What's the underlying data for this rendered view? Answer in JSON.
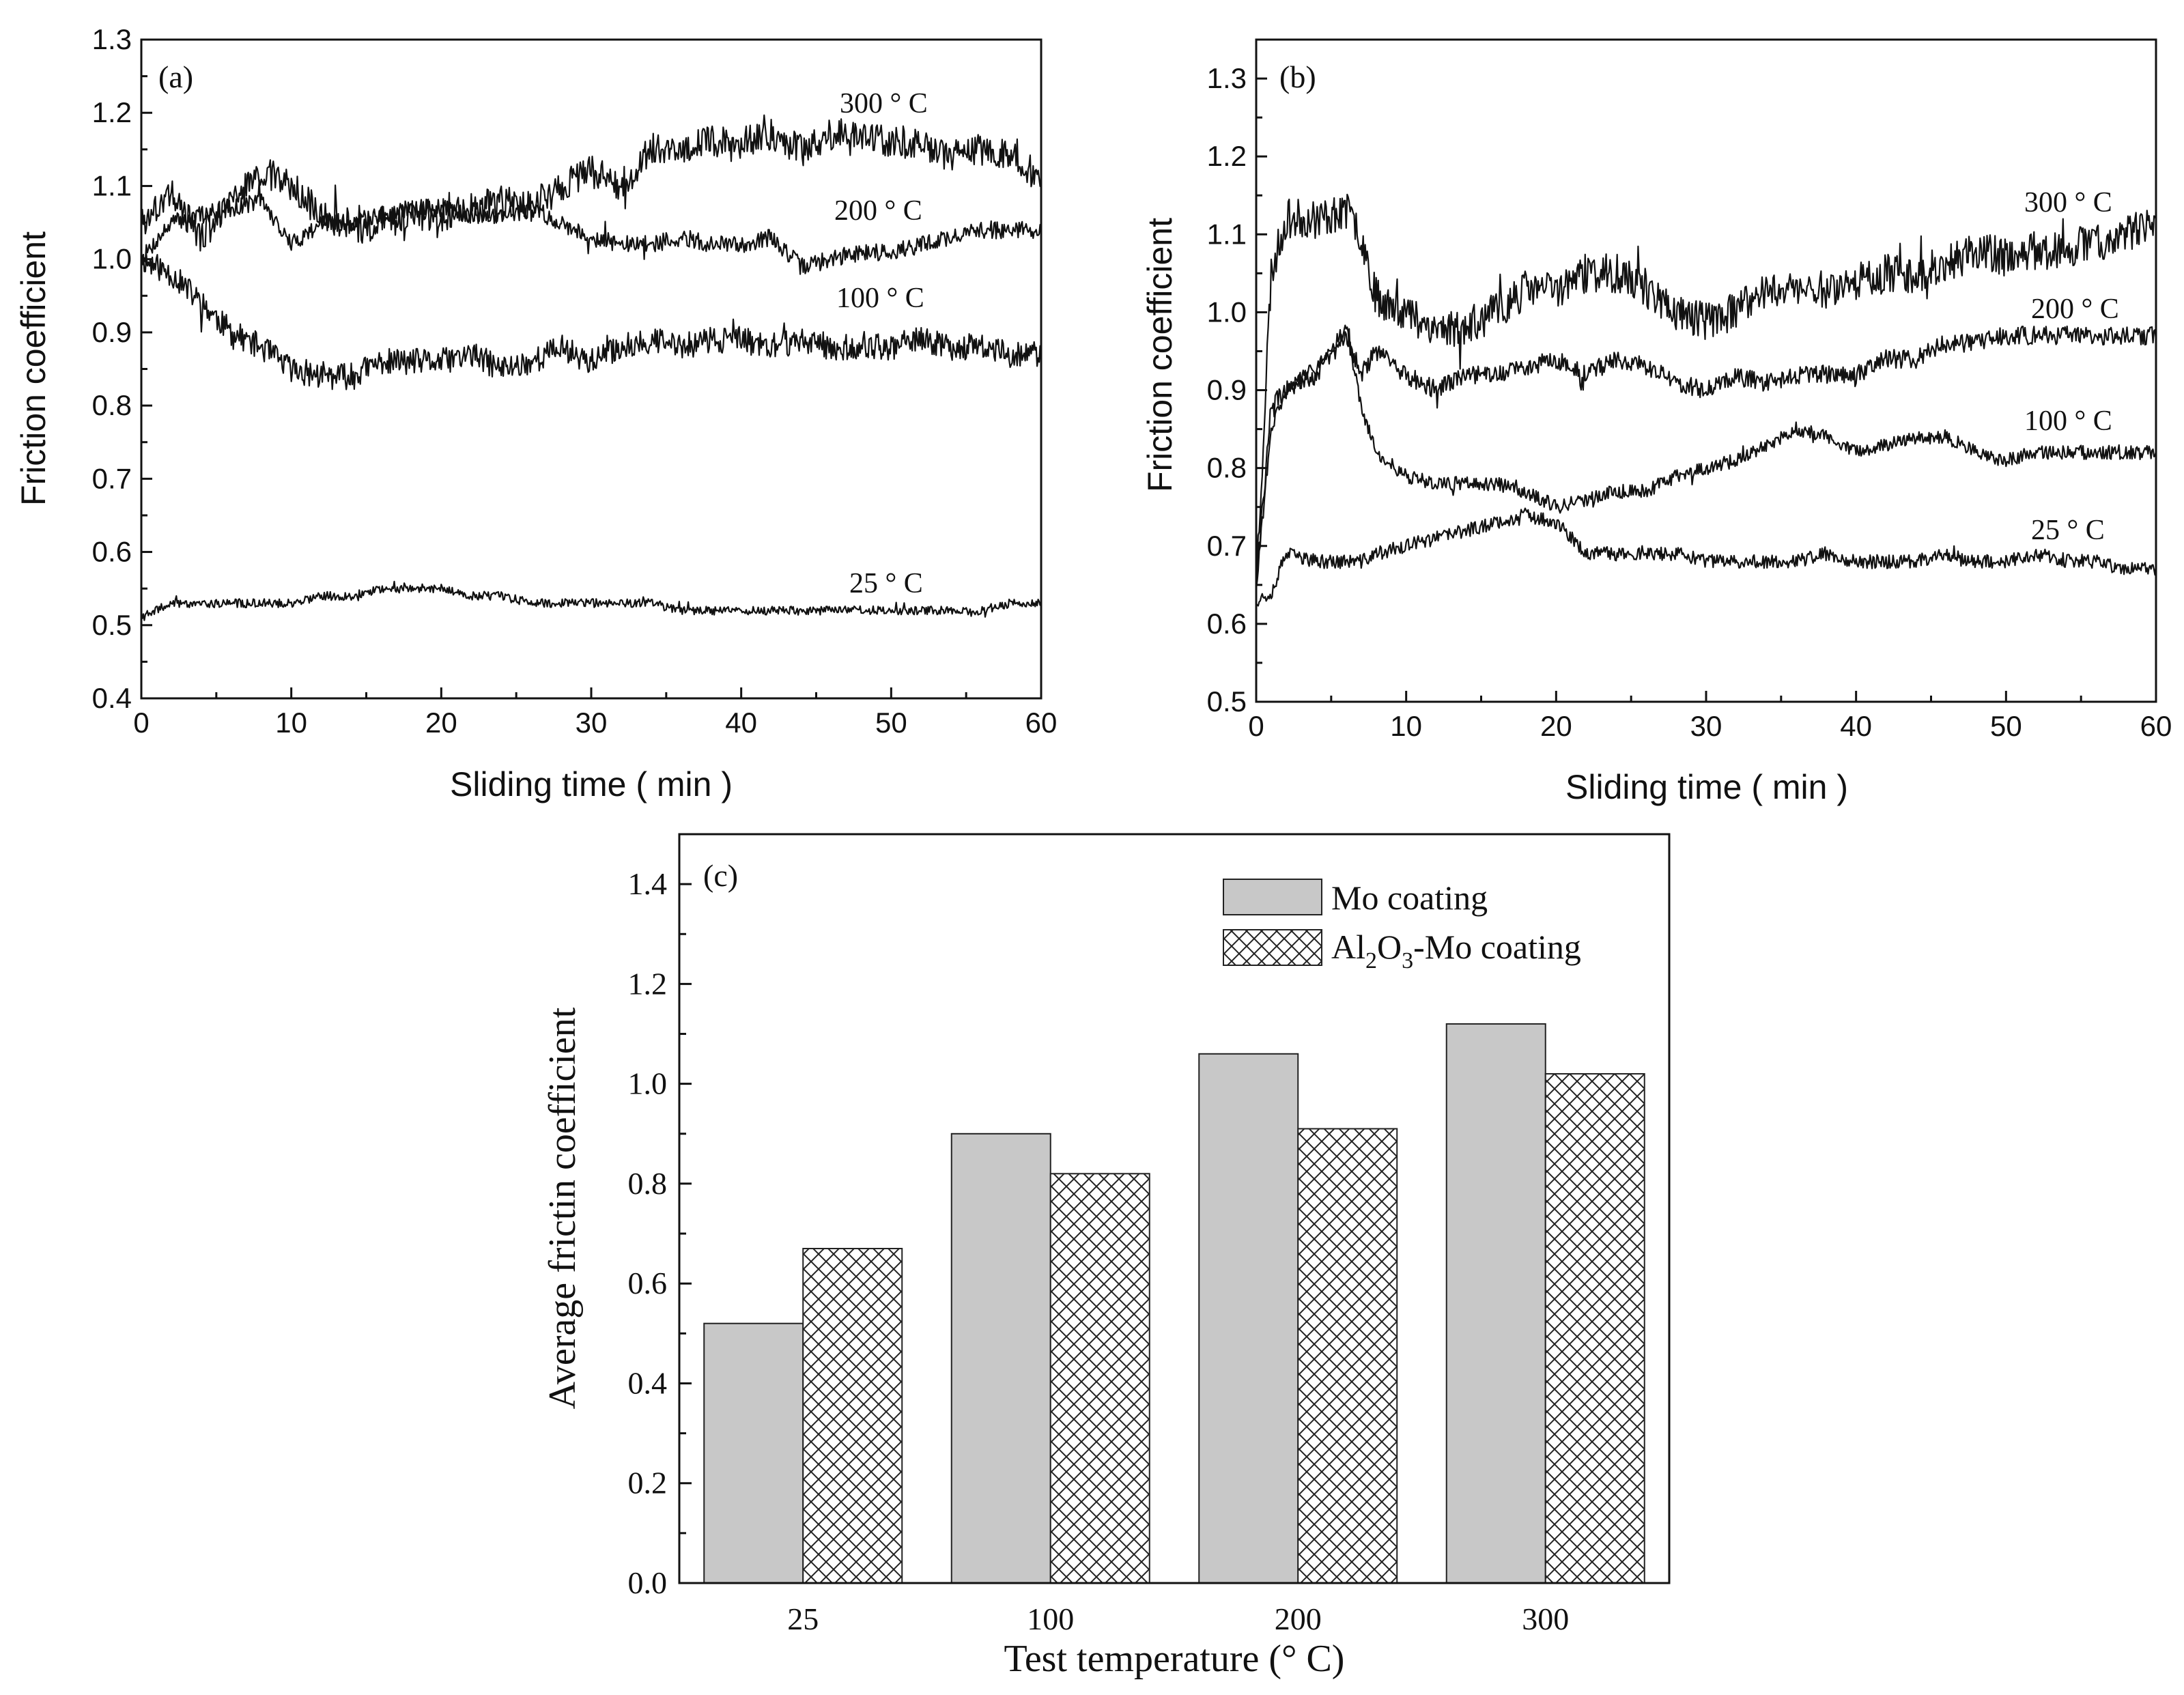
{
  "chart_data": [
    {
      "panel": "(a)",
      "type": "line",
      "title": "",
      "xlabel": "Sliding time ( min )",
      "ylabel": "Friction coefficient",
      "xlim": [
        0,
        60
      ],
      "ylim": [
        0.4,
        1.3
      ],
      "xticks": [
        "0",
        "10",
        "20",
        "30",
        "40",
        "50",
        "60"
      ],
      "yticks": [
        "0.4",
        "0.5",
        "0.6",
        "0.7",
        "0.8",
        "0.9",
        "1.0",
        "1.1",
        "1.2",
        "1.3"
      ],
      "series": [
        {
          "name": "300 ° C",
          "x": [
            0,
            2,
            4,
            6,
            8,
            10,
            12,
            14,
            16,
            18,
            20,
            22,
            24,
            26,
            28,
            30,
            32,
            34,
            36,
            38,
            40,
            42,
            44,
            46,
            48,
            50,
            52,
            54,
            56,
            58,
            60
          ],
          "y": [
            1.05,
            1.09,
            1.03,
            1.08,
            1.12,
            1.1,
            1.06,
            1.04,
            1.05,
            1.06,
            1.06,
            1.07,
            1.08,
            1.07,
            1.1,
            1.12,
            1.1,
            1.15,
            1.15,
            1.16,
            1.16,
            1.17,
            1.15,
            1.17,
            1.17,
            1.16,
            1.16,
            1.14,
            1.15,
            1.14,
            1.11
          ],
          "noise": 0.022,
          "seed": 3
        },
        {
          "name": "200 ° C",
          "x": [
            0,
            2,
            4,
            6,
            8,
            10,
            12,
            14,
            16,
            18,
            20,
            22,
            24,
            26,
            28,
            30,
            32,
            34,
            36,
            38,
            40,
            42,
            44,
            46,
            48,
            50,
            52,
            54,
            56,
            58,
            60
          ],
          "y": [
            1.0,
            1.05,
            1.06,
            1.07,
            1.08,
            1.02,
            1.05,
            1.05,
            1.06,
            1.07,
            1.07,
            1.06,
            1.06,
            1.07,
            1.05,
            1.03,
            1.02,
            1.02,
            1.03,
            1.02,
            1.02,
            1.03,
            0.99,
            1.0,
            1.01,
            1.01,
            1.02,
            1.03,
            1.04,
            1.04,
            1.04
          ],
          "noise": 0.012,
          "seed": 7
        },
        {
          "name": "100 ° C",
          "x": [
            0,
            2,
            4,
            6,
            8,
            10,
            12,
            14,
            16,
            18,
            20,
            22,
            24,
            26,
            28,
            30,
            32,
            34,
            36,
            38,
            40,
            42,
            44,
            46,
            48,
            50,
            52,
            54,
            56,
            58,
            60
          ],
          "y": [
            1.0,
            0.98,
            0.94,
            0.9,
            0.88,
            0.85,
            0.84,
            0.84,
            0.86,
            0.86,
            0.86,
            0.87,
            0.85,
            0.86,
            0.88,
            0.86,
            0.88,
            0.89,
            0.88,
            0.89,
            0.89,
            0.88,
            0.89,
            0.88,
            0.88,
            0.88,
            0.89,
            0.88,
            0.88,
            0.87,
            0.87
          ],
          "noise": 0.018,
          "seed": 11
        },
        {
          "name": "25 ° C",
          "x": [
            0,
            2,
            4,
            6,
            8,
            10,
            12,
            14,
            16,
            18,
            20,
            22,
            24,
            26,
            28,
            30,
            32,
            34,
            36,
            38,
            40,
            42,
            44,
            46,
            48,
            50,
            52,
            54,
            56,
            58,
            60
          ],
          "y": [
            0.51,
            0.53,
            0.53,
            0.53,
            0.53,
            0.53,
            0.54,
            0.54,
            0.55,
            0.55,
            0.55,
            0.54,
            0.54,
            0.53,
            0.53,
            0.53,
            0.53,
            0.53,
            0.52,
            0.52,
            0.52,
            0.52,
            0.52,
            0.52,
            0.52,
            0.52,
            0.52,
            0.52,
            0.52,
            0.53,
            0.53
          ],
          "noise": 0.006,
          "seed": 19
        }
      ]
    },
    {
      "panel": "(b)",
      "type": "line",
      "title": "",
      "xlabel": "Sliding time ( min )",
      "ylabel": "Friction coefficient",
      "xlim": [
        0,
        60
      ],
      "ylim": [
        0.5,
        1.35
      ],
      "xticks": [
        "0",
        "10",
        "20",
        "30",
        "40",
        "50",
        "60"
      ],
      "yticks": [
        "0.5",
        "0.6",
        "0.7",
        "0.8",
        "0.9",
        "1.0",
        "1.1",
        "1.2",
        "1.3"
      ],
      "series": [
        {
          "name": "300 ° C",
          "x": [
            0,
            1,
            2,
            4,
            6,
            7,
            8,
            10,
            12,
            14,
            16,
            18,
            20,
            22,
            24,
            26,
            28,
            30,
            32,
            34,
            36,
            38,
            40,
            42,
            44,
            46,
            48,
            50,
            52,
            54,
            56,
            58,
            60
          ],
          "y": [
            0.65,
            1.05,
            1.12,
            1.12,
            1.13,
            1.1,
            1.02,
            1.0,
            0.98,
            0.98,
            1.0,
            1.03,
            1.03,
            1.05,
            1.05,
            1.03,
            1.0,
            0.99,
            1.0,
            1.03,
            1.03,
            1.03,
            1.04,
            1.05,
            1.05,
            1.06,
            1.08,
            1.07,
            1.08,
            1.08,
            1.09,
            1.1,
            1.11
          ],
          "noise": 0.025,
          "seed": 23
        },
        {
          "name": "200 ° C",
          "x": [
            0,
            1,
            2,
            4,
            6,
            7,
            8,
            10,
            12,
            14,
            16,
            18,
            20,
            22,
            24,
            26,
            28,
            30,
            32,
            34,
            36,
            38,
            40,
            42,
            44,
            46,
            48,
            50,
            52,
            54,
            56,
            58,
            60
          ],
          "y": [
            0.65,
            0.88,
            0.9,
            0.92,
            0.97,
            0.92,
            0.95,
            0.92,
            0.9,
            0.92,
            0.92,
            0.93,
            0.94,
            0.92,
            0.94,
            0.93,
            0.91,
            0.9,
            0.92,
            0.91,
            0.92,
            0.92,
            0.92,
            0.94,
            0.94,
            0.96,
            0.96,
            0.97,
            0.97,
            0.97,
            0.97,
            0.97,
            0.97
          ],
          "noise": 0.012,
          "seed": 29
        },
        {
          "name": "100 ° C",
          "x": [
            0,
            1,
            2,
            4,
            6,
            7,
            8,
            10,
            12,
            14,
            16,
            18,
            20,
            22,
            24,
            26,
            28,
            30,
            32,
            34,
            36,
            38,
            40,
            42,
            44,
            46,
            48,
            50,
            52,
            54,
            56,
            58,
            60
          ],
          "y": [
            0.65,
            0.85,
            0.9,
            0.93,
            0.98,
            0.88,
            0.82,
            0.79,
            0.78,
            0.78,
            0.78,
            0.77,
            0.75,
            0.76,
            0.77,
            0.77,
            0.79,
            0.8,
            0.81,
            0.83,
            0.85,
            0.84,
            0.82,
            0.83,
            0.84,
            0.84,
            0.82,
            0.81,
            0.82,
            0.82,
            0.82,
            0.82,
            0.82
          ],
          "noise": 0.009,
          "seed": 31
        },
        {
          "name": "25 ° C",
          "x": [
            0,
            1,
            2,
            4,
            6,
            7,
            8,
            10,
            12,
            14,
            16,
            18,
            20,
            22,
            24,
            26,
            28,
            30,
            32,
            34,
            36,
            38,
            40,
            42,
            44,
            46,
            48,
            50,
            52,
            54,
            56,
            58,
            60
          ],
          "y": [
            0.63,
            0.64,
            0.69,
            0.68,
            0.68,
            0.68,
            0.69,
            0.7,
            0.71,
            0.72,
            0.73,
            0.74,
            0.73,
            0.69,
            0.69,
            0.69,
            0.69,
            0.68,
            0.68,
            0.68,
            0.68,
            0.69,
            0.68,
            0.68,
            0.68,
            0.69,
            0.68,
            0.68,
            0.69,
            0.68,
            0.68,
            0.67,
            0.67
          ],
          "noise": 0.009,
          "seed": 37
        }
      ]
    },
    {
      "panel": "(c)",
      "type": "bar",
      "title": "",
      "xlabel": "Test temperature (° C)",
      "ylabel": "Average frictin coefficient",
      "categories": [
        "25",
        "100",
        "200",
        "300"
      ],
      "ylim": [
        0.0,
        1.5
      ],
      "yticks": [
        "0.0",
        "0.2",
        "0.4",
        "0.6",
        "0.8",
        "1.0",
        "1.2",
        "1.4"
      ],
      "legend_position": "top-right",
      "series": [
        {
          "name": "Mo coating",
          "values": [
            0.52,
            0.9,
            1.06,
            1.12
          ],
          "fill": "solid",
          "color": "#c8c8c8"
        },
        {
          "name": "Al2O3-Mo coating",
          "legend_parts": [
            "Al",
            "2",
            "O",
            "3",
            "-Mo coating"
          ],
          "values": [
            0.67,
            0.82,
            0.91,
            1.02
          ],
          "fill": "crosshatch",
          "color": "#ffffff"
        }
      ]
    }
  ]
}
